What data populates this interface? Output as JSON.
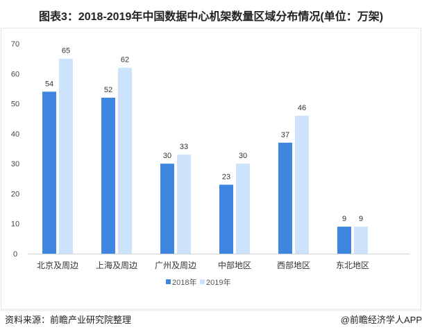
{
  "title": "图表3：2018-2019年中国数据中心机架数量区域分布情况(单位：万架)",
  "footer": {
    "source": "资料来源：前瞻产业研究院整理",
    "credit": "@前瞻经济学人APP"
  },
  "colors": {
    "2018年": "#3f86e0",
    "2019年": "#cde3fb"
  },
  "chart_data": {
    "type": "bar",
    "categories": [
      "北京及周边",
      "上海及周边",
      "广州及周边",
      "中部地区",
      "西部地区",
      "东北地区"
    ],
    "series": [
      {
        "name": "2018年",
        "values": [
          54,
          52,
          30,
          23,
          37,
          9
        ]
      },
      {
        "name": "2019年",
        "values": [
          65,
          62,
          33,
          30,
          46,
          9
        ]
      }
    ],
    "yticks": [
      0,
      10,
      20,
      30,
      40,
      50,
      60,
      70
    ],
    "ylim": [
      0,
      70
    ],
    "grid": false,
    "legend": "bottom",
    "data_labels": true
  }
}
